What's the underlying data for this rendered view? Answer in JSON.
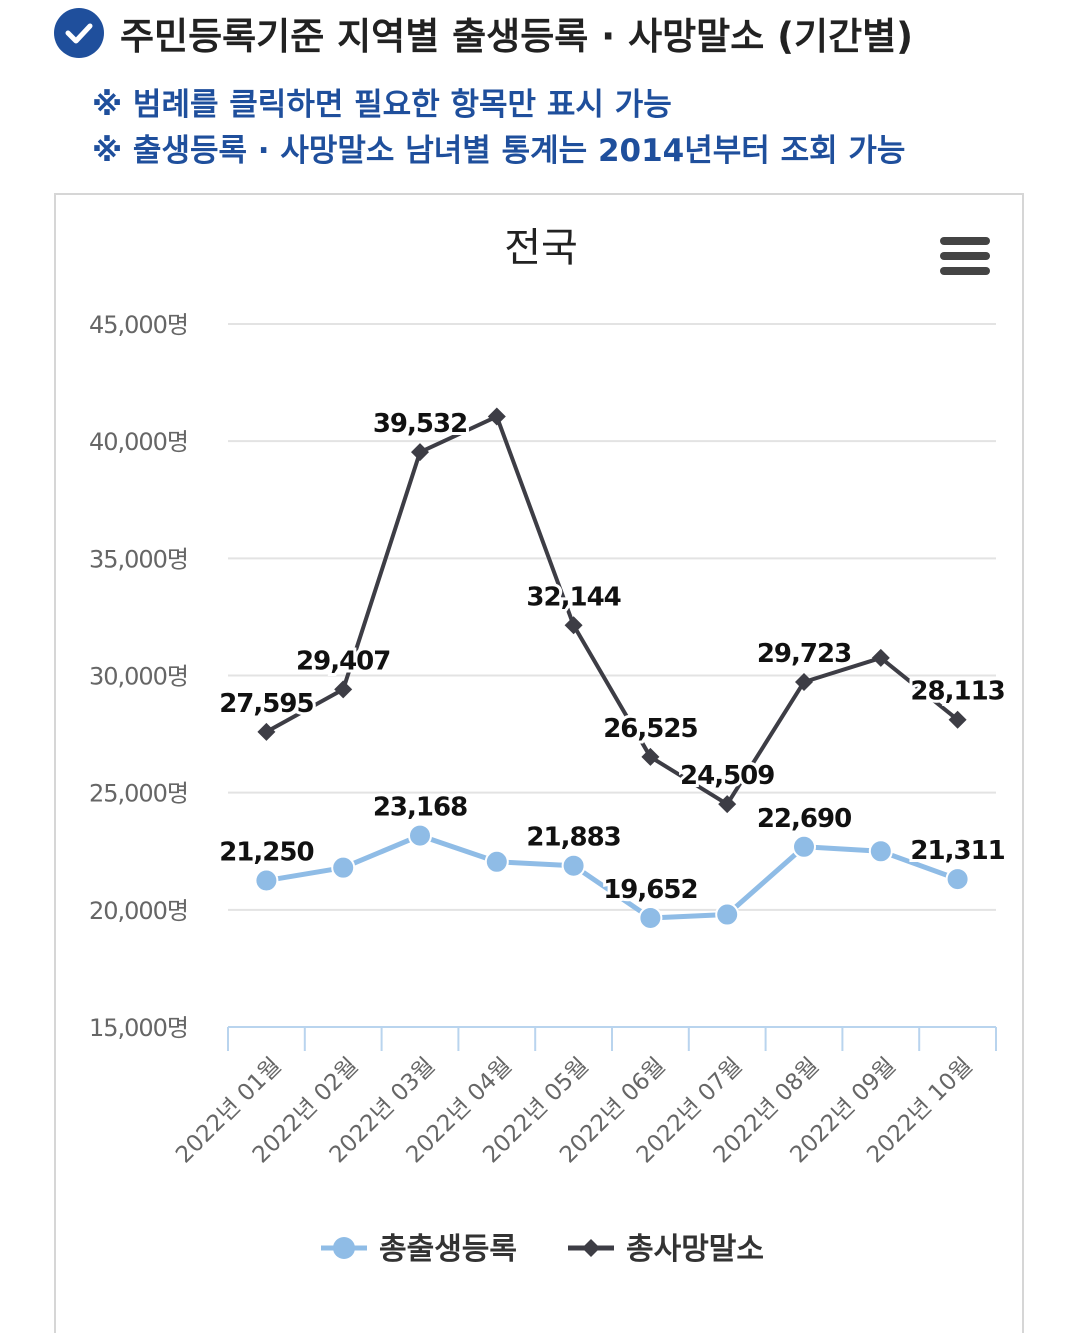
{
  "header": {
    "title": "주민등록기준 지역별 출생등록 · 사망말소 (기간별)",
    "icon": "check-circle-icon"
  },
  "notes": [
    "※ 범례를 클릭하면 필요한 항목만 표시 가능",
    "※ 출생등록 · 사망말소 남녀별 통계는 2014년부터 조회 가능"
  ],
  "chart_data": {
    "type": "line",
    "title": "전국",
    "x": [
      "2022년 01월",
      "2022년 02월",
      "2022년 03월",
      "2022년 04월",
      "2022년 05월",
      "2022년 06월",
      "2022년 07월",
      "2022년 08월",
      "2022년 09월",
      "2022년 10월"
    ],
    "y_ticks": [
      "15,000명",
      "20,000명",
      "25,000명",
      "30,000명",
      "35,000명",
      "40,000명",
      "45,000명"
    ],
    "ylim": [
      15000,
      45000
    ],
    "grid": true,
    "legend_position": "bottom",
    "series": [
      {
        "name": "총출생등록",
        "marker": "circle",
        "color": "#8fbce6",
        "values": [
          21250,
          21800,
          23168,
          22050,
          21883,
          19652,
          19800,
          22690,
          22500,
          21311
        ],
        "labels": [
          "21,250",
          "",
          "23,168",
          "",
          "21,883",
          "19,652",
          "",
          "22,690",
          "",
          "21,311"
        ]
      },
      {
        "name": "총사망말소",
        "marker": "diamond",
        "color": "#3d3d45",
        "values": [
          27595,
          29407,
          39532,
          41050,
          32144,
          26525,
          24509,
          29723,
          30750,
          28113
        ],
        "labels": [
          "27,595",
          "29,407",
          "39,532",
          "",
          "32,144",
          "26,525",
          "24,509",
          "29,723",
          "",
          "28,113"
        ]
      }
    ]
  }
}
